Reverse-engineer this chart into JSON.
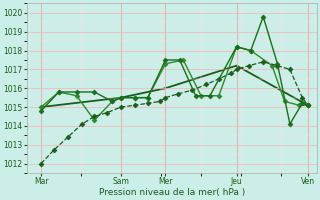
{
  "title": "",
  "xlabel": "Pression niveau de la mer( hPa )",
  "bg_color": "#cceee8",
  "grid_color_major": "#ffb0b0",
  "grid_color_minor": "#ffe0e0",
  "line_color_dark": "#1a5c1a",
  "ylim": [
    1011.5,
    1020.5
  ],
  "yticks": [
    1012,
    1013,
    1014,
    1015,
    1016,
    1017,
    1018,
    1019,
    1020
  ],
  "xlim": [
    -0.3,
    16.0
  ],
  "xtick_positions": [
    0.5,
    5.0,
    7.5,
    11.5,
    15.5
  ],
  "xtick_labels": [
    "Mar",
    "Sam",
    "Mer",
    "Jeu",
    "Ven"
  ],
  "vline_positions": [
    0.5,
    5.0,
    7.5,
    11.5,
    15.5
  ],
  "series": [
    {
      "x": [
        0.5,
        1.2,
        2.0,
        2.8,
        3.5,
        4.2,
        5.0,
        5.8,
        6.5,
        7.2,
        7.5,
        8.2,
        9.0,
        9.8,
        10.5,
        11.2,
        11.5,
        12.2,
        13.0,
        13.8,
        14.5,
        15.2,
        15.5
      ],
      "y": [
        1012.0,
        1012.7,
        1013.4,
        1014.1,
        1014.5,
        1014.7,
        1015.0,
        1015.1,
        1015.2,
        1015.3,
        1015.5,
        1015.7,
        1015.9,
        1016.2,
        1016.5,
        1016.8,
        1017.0,
        1017.2,
        1017.4,
        1017.2,
        1017.0,
        1015.5,
        1015.1
      ],
      "style": "--",
      "marker": "D",
      "markersize": 2.5,
      "linewidth": 0.9,
      "color": "#1a5c1a",
      "zorder": 3
    },
    {
      "x": [
        0.5,
        1.5,
        2.5,
        3.5,
        4.5,
        5.0,
        5.8,
        6.5,
        7.5,
        8.3,
        9.2,
        10.0,
        11.5,
        12.3,
        13.0,
        13.8,
        14.5,
        15.2,
        15.5
      ],
      "y": [
        1014.8,
        1015.8,
        1015.8,
        1015.8,
        1015.3,
        1015.5,
        1015.5,
        1015.5,
        1017.5,
        1017.5,
        1015.6,
        1015.6,
        1018.2,
        1018.0,
        1019.8,
        1017.3,
        1014.1,
        1015.2,
        1015.1
      ],
      "style": "-",
      "marker": "D",
      "markersize": 2.5,
      "linewidth": 1.0,
      "color": "#1a6e1a",
      "zorder": 4
    },
    {
      "x": [
        0.5,
        1.5,
        2.5,
        3.5,
        4.5,
        5.0,
        5.8,
        6.5,
        7.5,
        8.5,
        9.5,
        10.5,
        11.5,
        12.3,
        13.5,
        14.2,
        15.0,
        15.5
      ],
      "y": [
        1015.0,
        1015.8,
        1015.6,
        1014.3,
        1015.3,
        1015.5,
        1015.5,
        1015.5,
        1017.3,
        1017.5,
        1015.6,
        1015.6,
        1018.2,
        1018.0,
        1017.2,
        1015.3,
        1015.1,
        1015.1
      ],
      "style": "-",
      "marker": "D",
      "markersize": 2.5,
      "linewidth": 1.0,
      "color": "#2d8a2d",
      "zorder": 2
    },
    {
      "x": [
        0.5,
        5.0,
        7.5,
        11.5,
        15.5
      ],
      "y": [
        1015.0,
        1015.5,
        1016.0,
        1017.2,
        1015.1
      ],
      "style": "-",
      "marker": null,
      "markersize": 0,
      "linewidth": 1.3,
      "color": "#1a5c1a",
      "zorder": 1
    }
  ]
}
